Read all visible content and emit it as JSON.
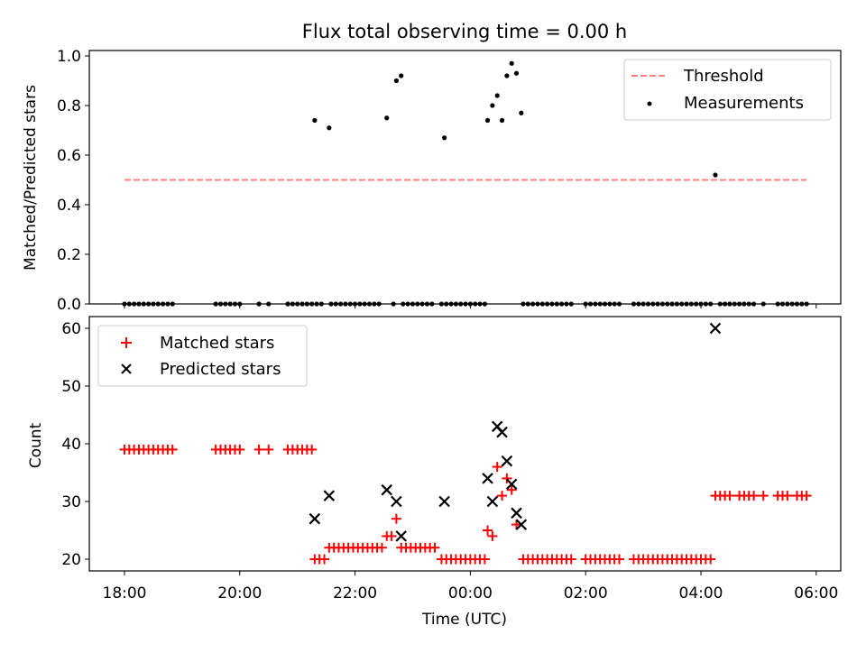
{
  "chart_data": [
    {
      "type": "scatter",
      "title": "Flux total observing time = 0.00 h",
      "ylabel": "Matched/Predicted stars",
      "xlabel": "",
      "ylim": [
        0,
        1.02
      ],
      "xlim": [
        "17:45",
        "06:15"
      ],
      "yticks": [
        "0.0",
        "0.2",
        "0.4",
        "0.6",
        "0.8",
        "1.0"
      ],
      "yticks_values": [
        0,
        0.2,
        0.4,
        0.6,
        0.8,
        1.0
      ],
      "threshold": {
        "name": "Threshold",
        "value": 0.5,
        "x_range": [
          "18:00",
          "05:50"
        ],
        "color": "#ff7f7f"
      },
      "legend": {
        "placement": "top-right",
        "entries": [
          "Threshold",
          "Measurements"
        ]
      },
      "series": [
        {
          "name": "Measurements",
          "color": "#000000",
          "points": [
            [
              "18:00",
              0
            ],
            [
              "18:05",
              0
            ],
            [
              "18:10",
              0
            ],
            [
              "18:15",
              0
            ],
            [
              "18:20",
              0
            ],
            [
              "18:25",
              0
            ],
            [
              "18:30",
              0
            ],
            [
              "18:35",
              0
            ],
            [
              "18:40",
              0
            ],
            [
              "18:45",
              0
            ],
            [
              "18:50",
              0
            ],
            [
              "19:35",
              0
            ],
            [
              "19:40",
              0
            ],
            [
              "19:45",
              0
            ],
            [
              "19:50",
              0
            ],
            [
              "19:55",
              0
            ],
            [
              "20:00",
              0
            ],
            [
              "20:20",
              0
            ],
            [
              "20:30",
              0
            ],
            [
              "20:50",
              0
            ],
            [
              "20:55",
              0
            ],
            [
              "21:00",
              0
            ],
            [
              "21:05",
              0
            ],
            [
              "21:10",
              0
            ],
            [
              "21:15",
              0
            ],
            [
              "21:20",
              0
            ],
            [
              "21:25",
              0
            ],
            [
              "21:18",
              0.74
            ],
            [
              "21:33",
              0.71
            ],
            [
              "21:35",
              0
            ],
            [
              "21:40",
              0
            ],
            [
              "21:45",
              0
            ],
            [
              "21:50",
              0
            ],
            [
              "21:55",
              0
            ],
            [
              "22:00",
              0
            ],
            [
              "22:05",
              0
            ],
            [
              "22:10",
              0
            ],
            [
              "22:15",
              0
            ],
            [
              "22:20",
              0
            ],
            [
              "22:25",
              0
            ],
            [
              "22:33",
              0.75
            ],
            [
              "22:43",
              0.9
            ],
            [
              "22:48",
              0.92
            ],
            [
              "22:40",
              0
            ],
            [
              "22:50",
              0
            ],
            [
              "22:55",
              0
            ],
            [
              "23:00",
              0
            ],
            [
              "23:05",
              0
            ],
            [
              "23:10",
              0
            ],
            [
              "23:15",
              0
            ],
            [
              "23:20",
              0
            ],
            [
              "23:33",
              0.67
            ],
            [
              "23:30",
              0
            ],
            [
              "23:35",
              0
            ],
            [
              "23:40",
              0
            ],
            [
              "23:45",
              0
            ],
            [
              "23:50",
              0
            ],
            [
              "23:55",
              0
            ],
            [
              "00:00",
              0
            ],
            [
              "00:05",
              0
            ],
            [
              "00:10",
              0
            ],
            [
              "00:15",
              0
            ],
            [
              "00:18",
              0.74
            ],
            [
              "00:23",
              0.8
            ],
            [
              "00:28",
              0.84
            ],
            [
              "00:33",
              0.74
            ],
            [
              "00:38",
              0.92
            ],
            [
              "00:43",
              0.97
            ],
            [
              "00:48",
              0.93
            ],
            [
              "00:53",
              0.77
            ],
            [
              "00:55",
              0
            ],
            [
              "01:00",
              0
            ],
            [
              "01:05",
              0
            ],
            [
              "01:10",
              0
            ],
            [
              "01:15",
              0
            ],
            [
              "01:20",
              0
            ],
            [
              "01:25",
              0
            ],
            [
              "01:30",
              0
            ],
            [
              "01:35",
              0
            ],
            [
              "01:40",
              0
            ],
            [
              "01:45",
              0
            ],
            [
              "02:00",
              0
            ],
            [
              "02:05",
              0
            ],
            [
              "02:10",
              0
            ],
            [
              "02:15",
              0
            ],
            [
              "02:20",
              0
            ],
            [
              "02:25",
              0
            ],
            [
              "02:30",
              0
            ],
            [
              "02:35",
              0
            ],
            [
              "02:50",
              0
            ],
            [
              "02:55",
              0
            ],
            [
              "03:00",
              0
            ],
            [
              "03:05",
              0
            ],
            [
              "03:10",
              0
            ],
            [
              "03:15",
              0
            ],
            [
              "03:20",
              0
            ],
            [
              "03:25",
              0
            ],
            [
              "03:30",
              0
            ],
            [
              "03:35",
              0
            ],
            [
              "03:40",
              0
            ],
            [
              "03:45",
              0
            ],
            [
              "03:50",
              0
            ],
            [
              "03:55",
              0
            ],
            [
              "04:00",
              0
            ],
            [
              "04:05",
              0
            ],
            [
              "04:10",
              0
            ],
            [
              "04:15",
              0.52
            ],
            [
              "04:20",
              0
            ],
            [
              "04:25",
              0
            ],
            [
              "04:30",
              0
            ],
            [
              "04:35",
              0
            ],
            [
              "04:40",
              0
            ],
            [
              "04:45",
              0
            ],
            [
              "04:50",
              0
            ],
            [
              "04:55",
              0
            ],
            [
              "05:05",
              0
            ],
            [
              "05:20",
              0
            ],
            [
              "05:25",
              0
            ],
            [
              "05:30",
              0
            ],
            [
              "05:35",
              0
            ],
            [
              "05:40",
              0
            ],
            [
              "05:45",
              0
            ],
            [
              "05:50",
              0
            ]
          ]
        }
      ]
    },
    {
      "type": "scatter",
      "title": "",
      "xlabel": "Time (UTC)",
      "ylabel": "Count",
      "ylim": [
        18,
        62
      ],
      "xlim": [
        "17:45",
        "06:15"
      ],
      "xticks": [
        "18:00",
        "20:00",
        "22:00",
        "00:00",
        "02:00",
        "04:00",
        "06:00"
      ],
      "yticks": [
        "20",
        "30",
        "40",
        "50",
        "60"
      ],
      "yticks_values": [
        20,
        30,
        40,
        50,
        60
      ],
      "legend": {
        "placement": "top-left",
        "entries": [
          "Matched stars",
          "Predicted stars"
        ]
      },
      "series": [
        {
          "name": "Matched stars",
          "marker": "+",
          "color": "#ff0000",
          "points": [
            [
              "18:00",
              39
            ],
            [
              "18:05",
              39
            ],
            [
              "18:10",
              39
            ],
            [
              "18:15",
              39
            ],
            [
              "18:20",
              39
            ],
            [
              "18:25",
              39
            ],
            [
              "18:30",
              39
            ],
            [
              "18:35",
              39
            ],
            [
              "18:40",
              39
            ],
            [
              "18:45",
              39
            ],
            [
              "18:50",
              39
            ],
            [
              "19:35",
              39
            ],
            [
              "19:40",
              39
            ],
            [
              "19:45",
              39
            ],
            [
              "19:50",
              39
            ],
            [
              "19:55",
              39
            ],
            [
              "20:00",
              39
            ],
            [
              "20:20",
              39
            ],
            [
              "20:30",
              39
            ],
            [
              "20:50",
              39
            ],
            [
              "20:55",
              39
            ],
            [
              "21:00",
              39
            ],
            [
              "21:05",
              39
            ],
            [
              "21:10",
              39
            ],
            [
              "21:15",
              39
            ],
            [
              "21:18",
              20
            ],
            [
              "21:23",
              20
            ],
            [
              "21:28",
              20
            ],
            [
              "21:33",
              22
            ],
            [
              "21:38",
              22
            ],
            [
              "21:43",
              22
            ],
            [
              "21:48",
              22
            ],
            [
              "21:53",
              22
            ],
            [
              "21:58",
              22
            ],
            [
              "22:03",
              22
            ],
            [
              "22:08",
              22
            ],
            [
              "22:13",
              22
            ],
            [
              "22:18",
              22
            ],
            [
              "22:23",
              22
            ],
            [
              "22:28",
              22
            ],
            [
              "22:33",
              24
            ],
            [
              "22:38",
              24
            ],
            [
              "22:43",
              27
            ],
            [
              "22:48",
              22
            ],
            [
              "22:53",
              22
            ],
            [
              "22:58",
              22
            ],
            [
              "23:03",
              22
            ],
            [
              "23:08",
              22
            ],
            [
              "23:13",
              22
            ],
            [
              "23:18",
              22
            ],
            [
              "23:23",
              22
            ],
            [
              "23:30",
              20
            ],
            [
              "23:35",
              20
            ],
            [
              "23:40",
              20
            ],
            [
              "23:45",
              20
            ],
            [
              "23:50",
              20
            ],
            [
              "23:55",
              20
            ],
            [
              "00:00",
              20
            ],
            [
              "00:05",
              20
            ],
            [
              "00:10",
              20
            ],
            [
              "00:15",
              20
            ],
            [
              "00:18",
              25
            ],
            [
              "00:23",
              24
            ],
            [
              "00:28",
              36
            ],
            [
              "00:33",
              31
            ],
            [
              "00:38",
              34
            ],
            [
              "00:43",
              32
            ],
            [
              "00:48",
              26
            ],
            [
              "00:55",
              20
            ],
            [
              "01:00",
              20
            ],
            [
              "01:05",
              20
            ],
            [
              "01:10",
              20
            ],
            [
              "01:15",
              20
            ],
            [
              "01:20",
              20
            ],
            [
              "01:25",
              20
            ],
            [
              "01:30",
              20
            ],
            [
              "01:35",
              20
            ],
            [
              "01:40",
              20
            ],
            [
              "01:45",
              20
            ],
            [
              "02:00",
              20
            ],
            [
              "02:05",
              20
            ],
            [
              "02:10",
              20
            ],
            [
              "02:15",
              20
            ],
            [
              "02:20",
              20
            ],
            [
              "02:25",
              20
            ],
            [
              "02:30",
              20
            ],
            [
              "02:35",
              20
            ],
            [
              "02:50",
              20
            ],
            [
              "02:55",
              20
            ],
            [
              "03:00",
              20
            ],
            [
              "03:05",
              20
            ],
            [
              "03:10",
              20
            ],
            [
              "03:15",
              20
            ],
            [
              "03:20",
              20
            ],
            [
              "03:25",
              20
            ],
            [
              "03:30",
              20
            ],
            [
              "03:35",
              20
            ],
            [
              "03:40",
              20
            ],
            [
              "03:45",
              20
            ],
            [
              "03:50",
              20
            ],
            [
              "03:55",
              20
            ],
            [
              "04:00",
              20
            ],
            [
              "04:05",
              20
            ],
            [
              "04:10",
              20
            ],
            [
              "04:15",
              31
            ],
            [
              "04:20",
              31
            ],
            [
              "04:25",
              31
            ],
            [
              "04:30",
              31
            ],
            [
              "04:40",
              31
            ],
            [
              "04:45",
              31
            ],
            [
              "04:50",
              31
            ],
            [
              "04:55",
              31
            ],
            [
              "05:05",
              31
            ],
            [
              "05:20",
              31
            ],
            [
              "05:25",
              31
            ],
            [
              "05:30",
              31
            ],
            [
              "05:40",
              31
            ],
            [
              "05:45",
              31
            ],
            [
              "05:50",
              31
            ]
          ]
        },
        {
          "name": "Predicted stars",
          "marker": "x",
          "color": "#000000",
          "points": [
            [
              "21:18",
              27
            ],
            [
              "21:33",
              31
            ],
            [
              "22:33",
              32
            ],
            [
              "22:43",
              30
            ],
            [
              "22:48",
              24
            ],
            [
              "23:33",
              30
            ],
            [
              "00:18",
              34
            ],
            [
              "00:23",
              30
            ],
            [
              "00:28",
              43
            ],
            [
              "00:33",
              42
            ],
            [
              "00:38",
              37
            ],
            [
              "00:43",
              33
            ],
            [
              "00:48",
              28
            ],
            [
              "00:53",
              26
            ],
            [
              "04:15",
              60
            ]
          ]
        }
      ]
    }
  ]
}
